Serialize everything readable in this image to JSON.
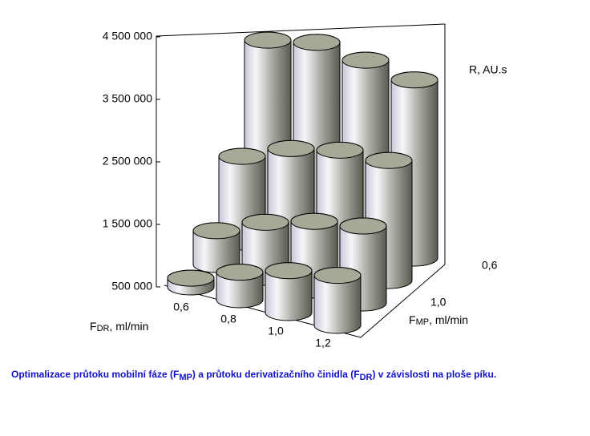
{
  "chart_data": {
    "type": "cylinder3d",
    "categories": [
      "0,6",
      "0,8",
      "1,0",
      "1,2"
    ],
    "depth_categories": [
      null,
      "1,0",
      null,
      "0,6"
    ],
    "series": [
      {
        "values": [
          640000,
          940000,
          1170000,
          1300000
        ]
      },
      {
        "values": [
          1040000,
          1380000,
          1600000,
          1730000
        ]
      },
      {
        "values": [
          1870000,
          2200000,
          2380000,
          2420000
        ]
      },
      {
        "values": [
          3370000,
          3540000,
          3460000,
          3350000
        ]
      }
    ],
    "color": "#a8a898",
    "zlim": [
      500000,
      4500000
    ],
    "zticks": [
      {
        "value": 500000,
        "label": "500 000"
      },
      {
        "value": 1500000,
        "label": "1 500 000"
      },
      {
        "value": 2500000,
        "label": "2 500 000"
      },
      {
        "value": 3500000,
        "label": "3 500 000"
      },
      {
        "value": 4500000,
        "label": "4 500 000"
      }
    ],
    "z_label": "R, AU.s",
    "x_label": {
      "main": "F",
      "sub": "DR",
      "rest": ", ml/min"
    },
    "depth_label": {
      "main": "F",
      "sub": "MP",
      "rest": ", ml/min"
    },
    "caption": [
      "Optimalizace průtoku mobilní fáze (F",
      "MP",
      ")  a průtoku derivatizačního činidla (F",
      "DR",
      ")  v závislosti na ploše píku."
    ]
  }
}
